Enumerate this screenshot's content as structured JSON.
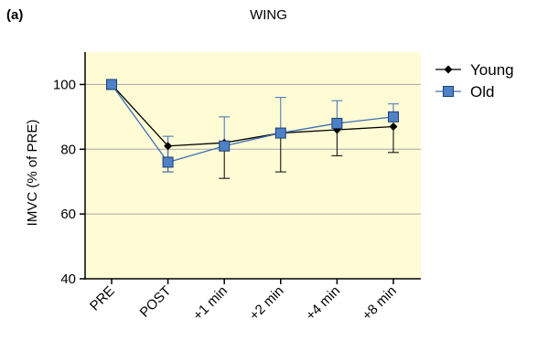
{
  "panel_label": "(a)",
  "chart_data": {
    "type": "line",
    "title": "WING",
    "xlabel": "",
    "ylabel": "IMVC (% of PRE)",
    "categories": [
      "PRE",
      "POST",
      "+1 min",
      "+2 min",
      "+4 min",
      "+8 min"
    ],
    "ylim": [
      40,
      110
    ],
    "yticks": [
      40,
      60,
      80,
      100
    ],
    "grid": true,
    "background": "#fffbd5",
    "legend_placement": "top-right",
    "series": [
      {
        "name": "Young",
        "marker": "diamond",
        "color": "#000000",
        "markerColor": "#000000",
        "values": [
          100,
          81,
          82,
          85,
          86,
          87
        ],
        "error_minus": [
          0,
          8,
          11,
          12,
          8,
          8
        ],
        "error_plus": [
          0,
          0,
          0,
          0,
          0,
          0
        ]
      },
      {
        "name": "Old",
        "marker": "square",
        "color": "#3b6fb6",
        "markerColor": "#4f81c7",
        "values": [
          100,
          76,
          81,
          85,
          88,
          90
        ],
        "error_minus": [
          0,
          3,
          0,
          0,
          0,
          0
        ],
        "error_plus": [
          0,
          8,
          9,
          11,
          7,
          4
        ]
      }
    ]
  }
}
